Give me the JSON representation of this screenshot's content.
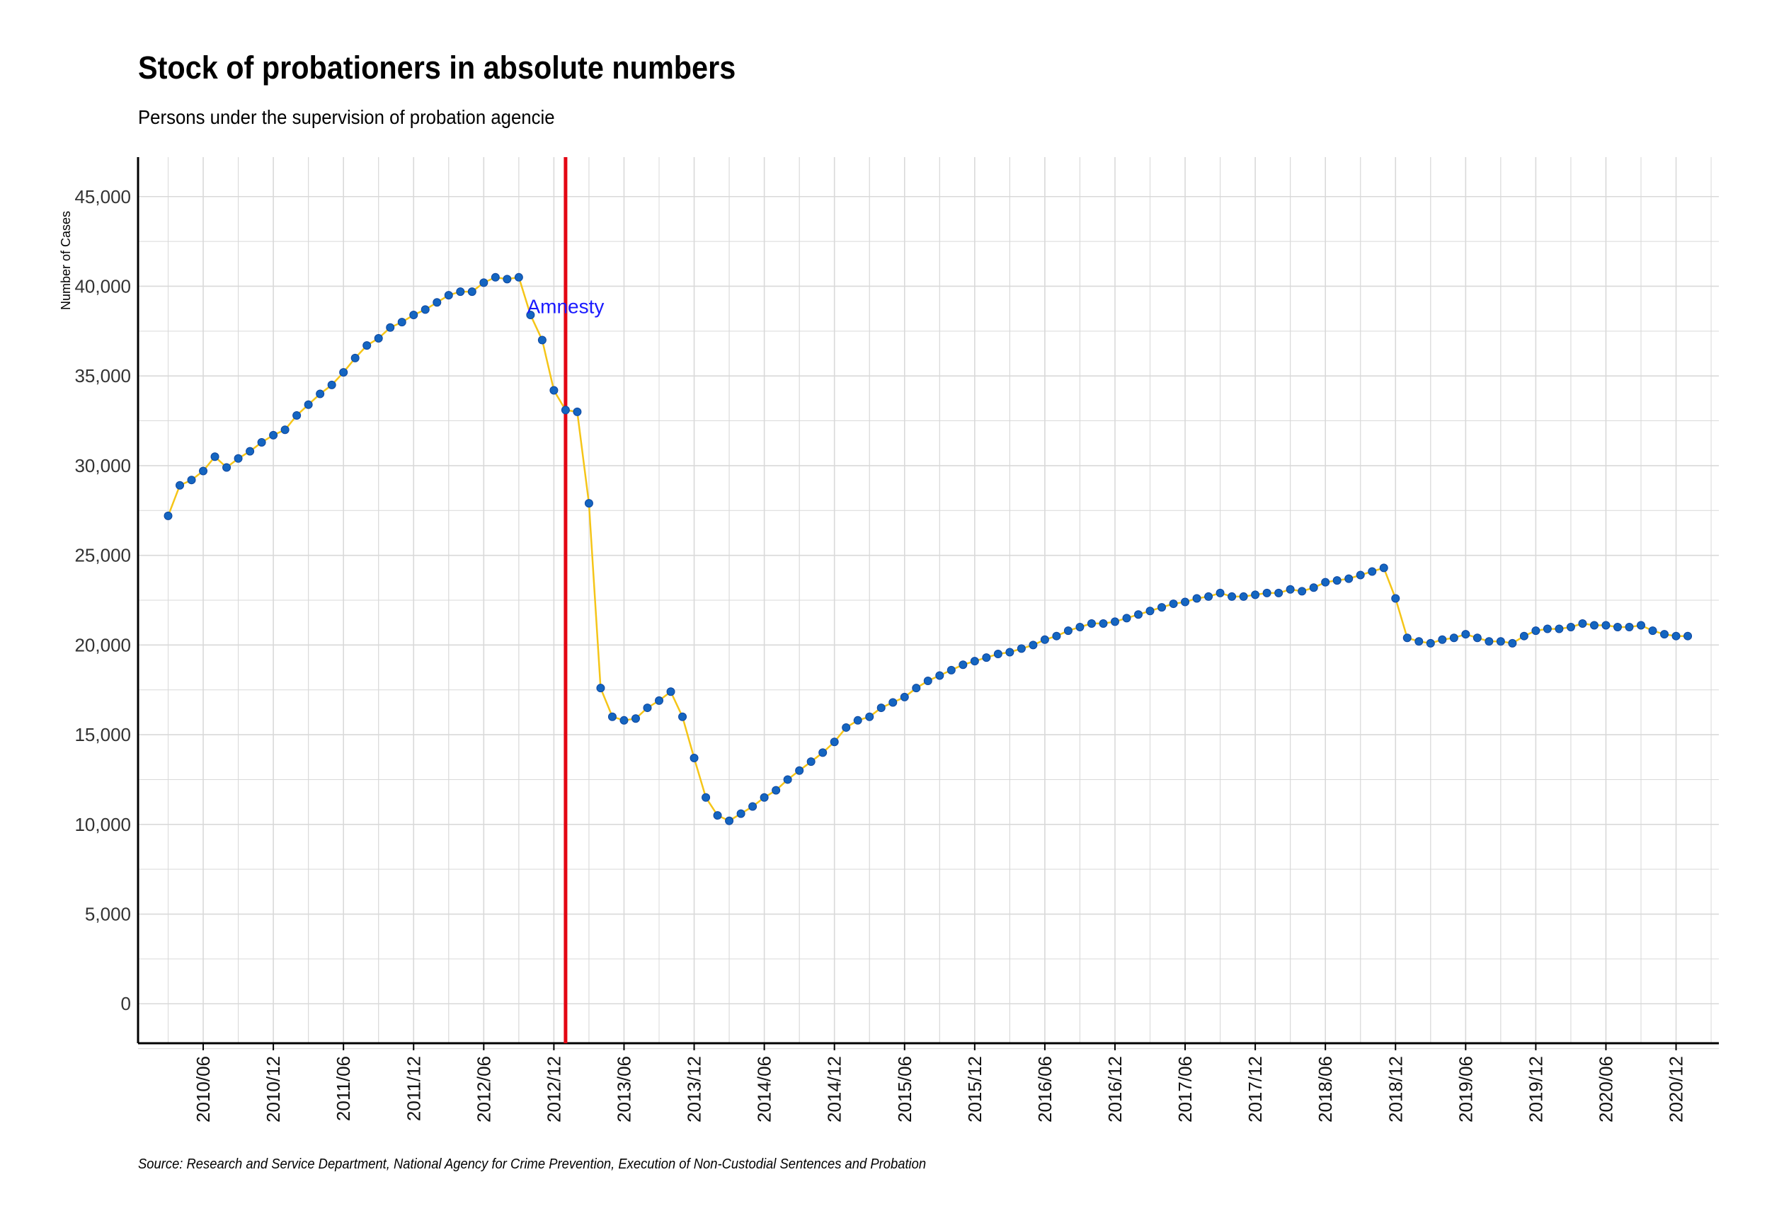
{
  "title": "Stock of probationers in absolute numbers",
  "subtitle": "Persons under the supervision of probation agencie",
  "source": "Source: Research and Service Department, National Agency for Crime Prevention, Execution of Non-Custodial Sentences and Probation",
  "colors": {
    "line": "#F5C518",
    "points": "#1565C0",
    "vline": "#E30613",
    "annotation": "#1A1AFF",
    "grid": "#D9D9D9"
  },
  "chart_data": {
    "type": "line",
    "title": "Stock of probationers in absolute numbers",
    "subtitle": "Persons under the supervision of probation agencie",
    "xlabel": "",
    "ylabel": "Number of Cases",
    "ylim": [
      -2200,
      47200
    ],
    "yticks": [
      0,
      5000,
      10000,
      15000,
      20000,
      25000,
      30000,
      35000,
      40000,
      45000
    ],
    "ytick_labels": [
      "0",
      "5,000",
      "10,000",
      "15,000",
      "20,000",
      "25,000",
      "30,000",
      "35,000",
      "40,000",
      "45,000"
    ],
    "x_start": "2010/03",
    "x_step": "1 month",
    "xtick_labels": [
      "2010/06",
      "2010/12",
      "2011/06",
      "2011/12",
      "2012/06",
      "2012/12",
      "2013/06",
      "2013/12",
      "2014/06",
      "2014/12",
      "2015/06",
      "2015/12",
      "2016/06",
      "2016/12",
      "2017/06",
      "2017/12",
      "2018/06",
      "2018/12",
      "2019/06",
      "2019/12",
      "2020/06",
      "2020/12"
    ],
    "grid": true,
    "annotation": {
      "text": "Amnesty",
      "x": "2013/01"
    },
    "series": [
      {
        "values": [
          27200,
          28900,
          29200,
          29700,
          30500,
          29900,
          30400,
          30800,
          31300,
          31700,
          32000,
          32800,
          33400,
          34000,
          34500,
          35200,
          36000,
          36700,
          37100,
          37700,
          38000,
          38400,
          38700,
          39100,
          39500,
          39700,
          39700,
          40200,
          40500,
          40400,
          40500,
          38400,
          37000,
          34200,
          33100,
          33000,
          27900,
          17600,
          16000,
          15800,
          15900,
          16500,
          16900,
          17400,
          16000,
          13700,
          11500,
          10500,
          10200,
          10600,
          11000,
          11500,
          11900,
          12500,
          13000,
          13500,
          14000,
          14600,
          15400,
          15800,
          16000,
          16500,
          16800,
          17100,
          17600,
          18000,
          18300,
          18600,
          18900,
          19100,
          19300,
          19500,
          19600,
          19800,
          20000,
          20300,
          20500,
          20800,
          21000,
          21200,
          21200,
          21300,
          21500,
          21700,
          21900,
          22100,
          22300,
          22400,
          22600,
          22700,
          22900,
          22700,
          22700,
          22800,
          22900,
          22900,
          23100,
          23000,
          23200,
          23500,
          23600,
          23700,
          23900,
          24100,
          24300,
          22600,
          20400,
          20200,
          20100,
          20300,
          20400,
          20600,
          20400,
          20200,
          20200,
          20100,
          20500,
          20800,
          20900,
          20900,
          21000,
          21200,
          21100,
          21100,
          21000,
          21000,
          21100,
          20800,
          20600,
          20500,
          20500
        ]
      }
    ]
  }
}
